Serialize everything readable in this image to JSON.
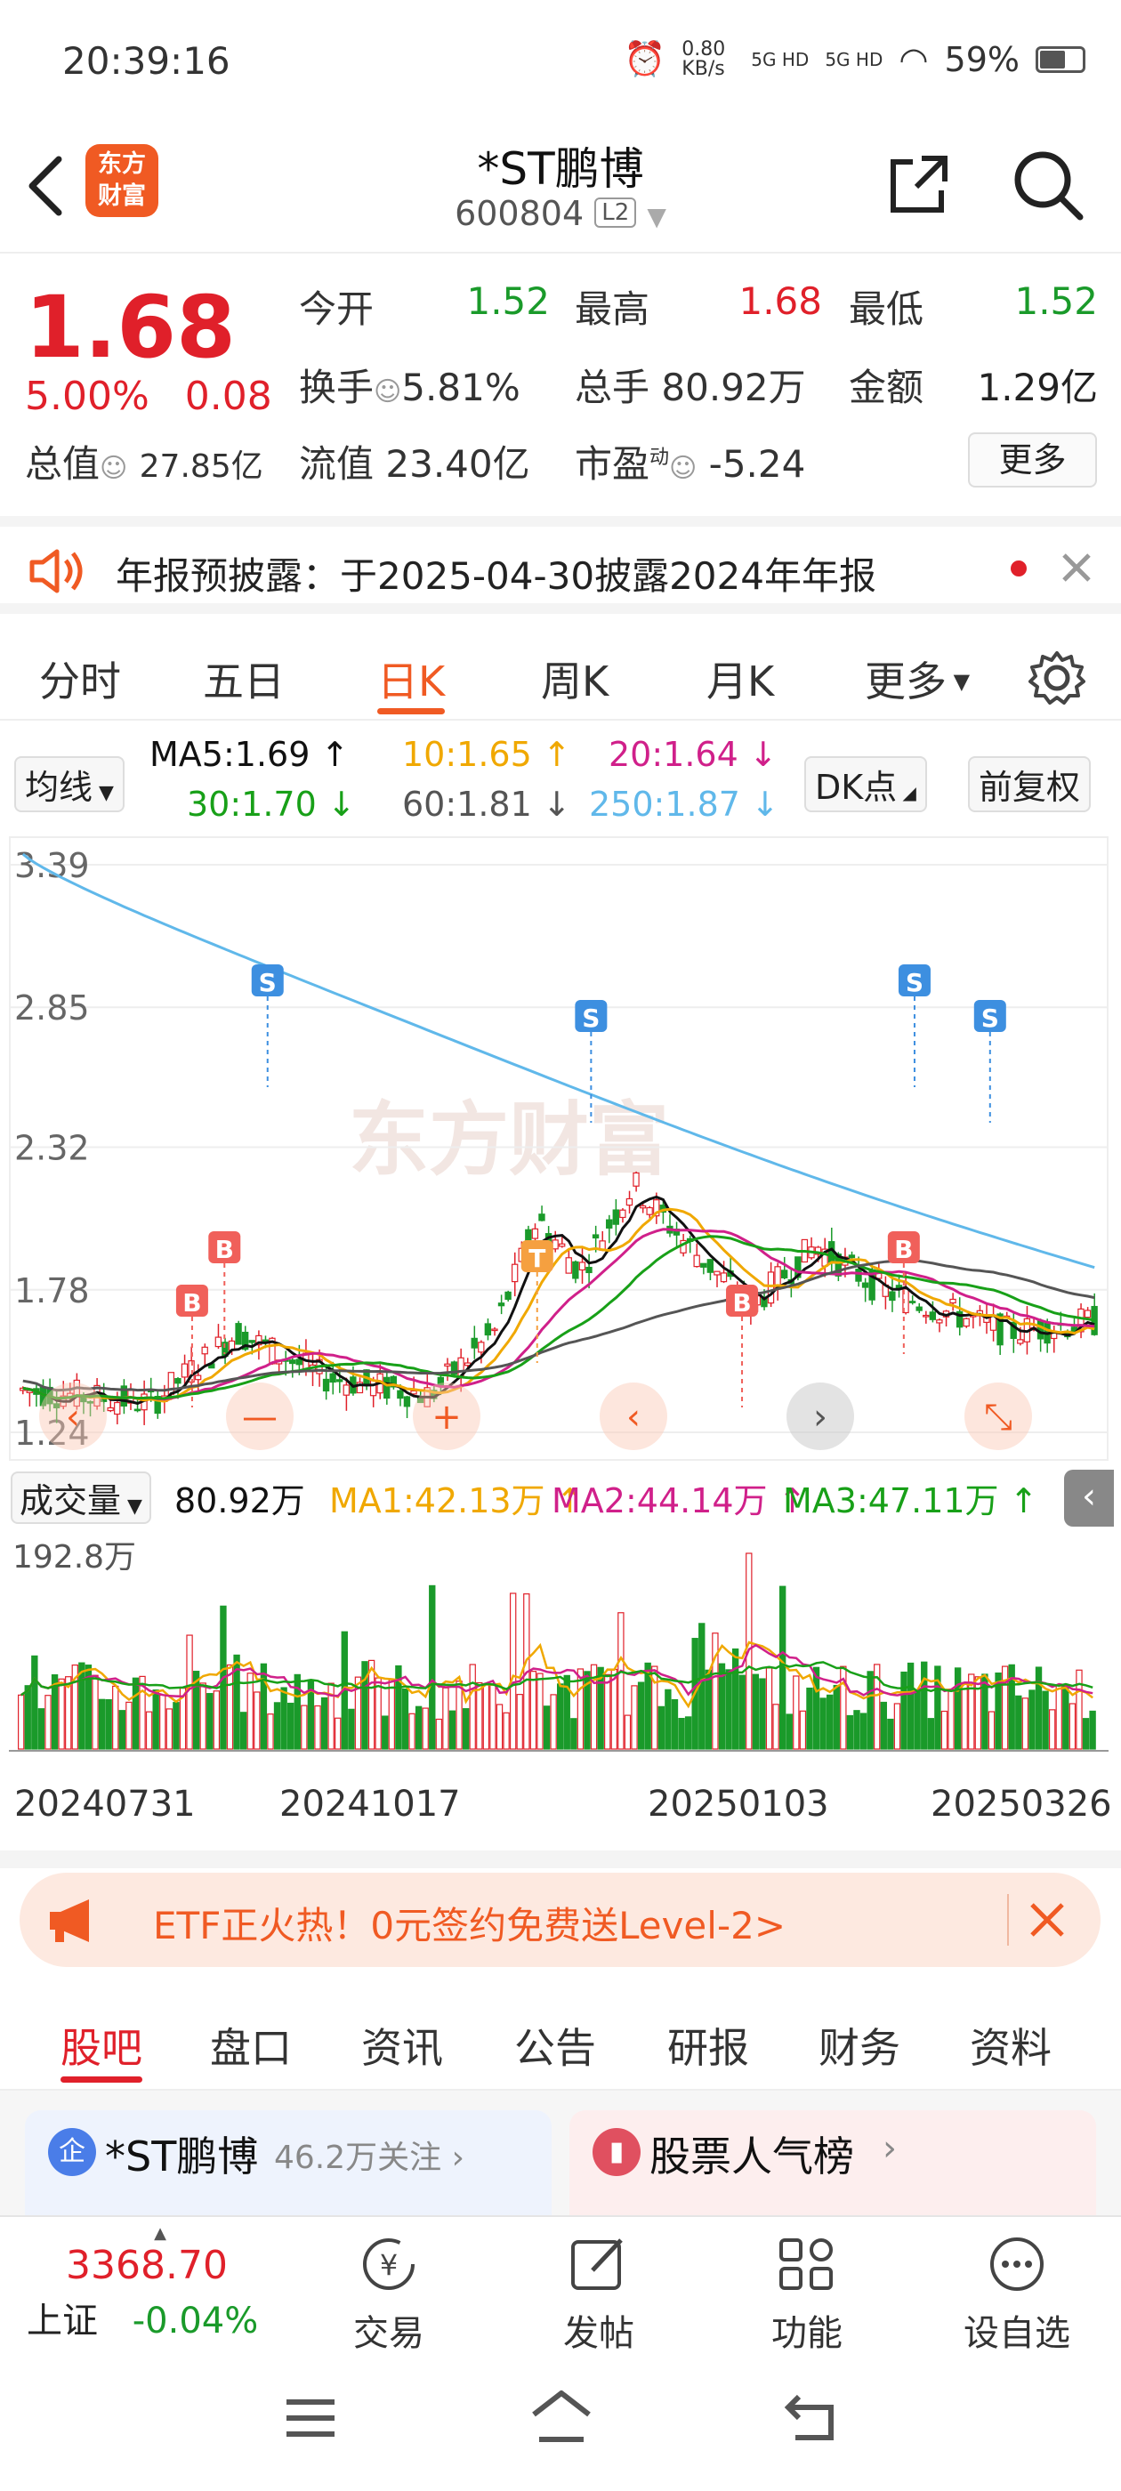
{
  "status": {
    "time": "20:39:16",
    "net_speed": "0.80 KB/s",
    "signal1": "5G HD",
    "signal2": "5G HD",
    "battery": "59%"
  },
  "header": {
    "logo_text": "东方财富",
    "title": "*ST鹏博",
    "code": "600804",
    "level": "L2"
  },
  "quote": {
    "price": "1.68",
    "change_pct": "5.00%",
    "change_amt": "0.08",
    "open_label": "今开",
    "open": "1.52",
    "high_label": "最高",
    "high": "1.68",
    "low_label": "最低",
    "low": "1.52",
    "turnover_label": "换手",
    "turnover": "5.81%",
    "volume_label": "总手",
    "volume": "80.92万",
    "amount_label": "金额",
    "amount": "1.29亿",
    "mktcap_label": "总值",
    "mktcap": "27.85亿",
    "float_label": "流值",
    "float": "23.40亿",
    "pe_label": "市盈",
    "pe_sup": "动",
    "pe": "-5.24",
    "more": "更多"
  },
  "notice": {
    "text": "年报预披露：于2025-04-30披露2024年年报"
  },
  "period_tabs": [
    "分时",
    "五日",
    "日K",
    "周K",
    "月K",
    "更多"
  ],
  "ma_legend": {
    "selector": "均线",
    "ma5": "MA5:1.69 ↑",
    "ma10": "10:1.65 ↑",
    "ma20": "20:1.64 ↓",
    "ma30": "30:1.70 ↓",
    "ma60": "60:1.81 ↓",
    "ma250": "250:1.87 ↓",
    "dk": "DK点",
    "adjust": "前复权"
  },
  "colors": {
    "ma5": "#111111",
    "ma10": "#f0a800",
    "ma20": "#d0208a",
    "ma30": "#18a018",
    "ma60": "#555555",
    "ma250": "#60b8ea",
    "up": "#e0202a",
    "down": "#1a9a2a",
    "accent": "#f05a23"
  },
  "chart_labels": {
    "y_top": "3.39",
    "y2": "2.85",
    "y3": "2.32",
    "y4": "1.78",
    "y_bottom": "1.24",
    "watermark": "东方财富"
  },
  "chart_data": {
    "type": "candlestick",
    "ylim": [
      1.24,
      3.39
    ],
    "ma_lines": [
      {
        "name": "MA5",
        "start": 1.48,
        "end": 1.69
      },
      {
        "name": "MA10",
        "start": 1.48,
        "end": 1.65
      },
      {
        "name": "MA20",
        "start": 1.47,
        "end": 1.64
      },
      {
        "name": "MA30",
        "start": 1.46,
        "end": 1.7
      },
      {
        "name": "MA60",
        "start": 1.44,
        "end": 1.81
      },
      {
        "name": "MA250",
        "start": 3.43,
        "end": 1.87
      }
    ],
    "x_labels": [
      "20240731",
      "20241017",
      "20250103",
      "20250326"
    ],
    "volume_ymax": "192.8万",
    "volume_latest": "80.92万",
    "markers": [
      "S",
      "S",
      "S",
      "S",
      "B",
      "B",
      "B",
      "B",
      "T"
    ]
  },
  "volume_legend": {
    "selector": "成交量",
    "value": "80.92万",
    "ma1": "MA1:42.13万 ↑",
    "ma2": "MA2:44.14万 ↑",
    "ma3": "MA3:47.11万 ↑",
    "ymax": "192.8万"
  },
  "date_labels": [
    "20240731",
    "20241017",
    "20250103",
    "20250326"
  ],
  "ad": {
    "text": "ETF正火热！0元签约免费送Level-2>"
  },
  "bottom_tabs": [
    "股吧",
    "盘口",
    "资讯",
    "公告",
    "研报",
    "财务",
    "资料"
  ],
  "cards": {
    "left_title": "*ST鹏博",
    "left_follow": "46.2万关注",
    "right_title": "股票人气榜"
  },
  "bottom_nav": {
    "index_value": "3368.70",
    "index_name": "上证",
    "index_change": "-0.04%",
    "trade": "交易",
    "post": "发帖",
    "func": "功能",
    "watch": "设自选"
  }
}
